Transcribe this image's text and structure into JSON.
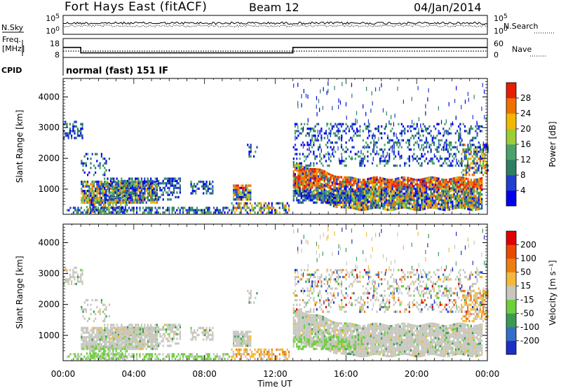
{
  "header": {
    "title": "Fort Hays East (fitACF)",
    "beam": "Beam 12",
    "date": "04/Jan/2014",
    "mode": "normal (fast) 151 IF"
  },
  "side_labels": {
    "nsky": "N.Sky",
    "freq": "Freq.",
    "mhz": "[MHz]",
    "cpid": "CPID",
    "nsearch": "N.Search",
    "nave": "Nave",
    "nsky_ticks": [
      "10^5",
      "10^0"
    ],
    "freq_ticks": [
      "18",
      "8"
    ],
    "nsearch_ticks": [
      "10^5",
      "10^0"
    ],
    "nave_ticks": [
      "60",
      "0"
    ]
  },
  "chart_data": [
    {
      "type": "line",
      "panel": "noise",
      "series": [
        {
          "name": "N.Sky",
          "style": "solid",
          "values_log10": 3.2
        },
        {
          "name": "N.Search",
          "style": "dotted",
          "values_log10": 2.9
        }
      ]
    },
    {
      "type": "line",
      "panel": "freq-nave",
      "x_hours": [
        0,
        1.0,
        1.0,
        13.0,
        13.0,
        24
      ],
      "freq_mhz": [
        13.3,
        13.3,
        10.4,
        10.4,
        13.3,
        13.3
      ],
      "nave": [
        20,
        20,
        20,
        20,
        20,
        20
      ]
    },
    {
      "type": "heatmap",
      "panel": "power",
      "ylabel": "Slant Range [km]",
      "yticks": [
        "1000",
        "2000",
        "3000",
        "4000"
      ],
      "ylim": [
        180,
        4600
      ],
      "xlim": [
        0,
        24
      ],
      "colorbar": {
        "label": "Power [dB]",
        "ticks": [
          "4",
          "8",
          "12",
          "16",
          "20",
          "24",
          "28"
        ],
        "colors": [
          "#0000ee",
          "#1f3fcf",
          "#2d7f62",
          "#4aa36b",
          "#9ccc36",
          "#f2b800",
          "#f07000",
          "#e61e00"
        ]
      }
    },
    {
      "type": "heatmap",
      "panel": "velocity",
      "ylabel": "Slant Range [km]",
      "yticks": [
        "1000",
        "2000",
        "3000",
        "4000"
      ],
      "xlabel": "Time UT",
      "xticks": [
        "00:00",
        "04:00",
        "08:00",
        "12:00",
        "16:00",
        "20:00",
        "00:00"
      ],
      "ylim": [
        180,
        4600
      ],
      "xlim": [
        0,
        24
      ],
      "colorbar": {
        "label": "Velocity [m s⁻¹]",
        "ticks": [
          "200",
          "100",
          "50",
          "15",
          "-15",
          "-50",
          "-100",
          "-200"
        ],
        "colors": [
          "#1b2fc6",
          "#356ec8",
          "#3a9a54",
          "#6ccf3c",
          "#c7c7bf",
          "#f4b93b",
          "#ee7d12",
          "#ea4a00",
          "#e00000"
        ]
      }
    }
  ]
}
